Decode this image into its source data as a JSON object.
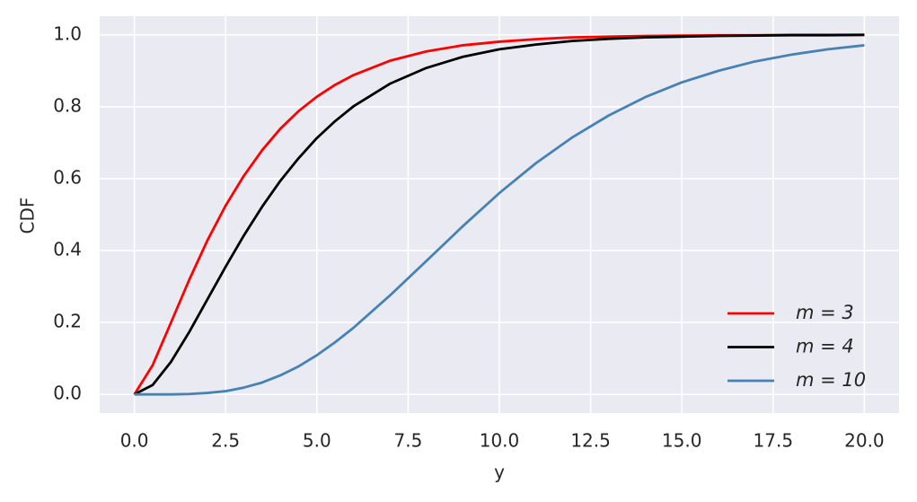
{
  "chart_data": {
    "type": "line",
    "xlabel": "y",
    "ylabel": "CDF",
    "x": [
      0,
      0.5,
      1,
      1.5,
      2,
      2.5,
      3,
      3.5,
      4,
      4.5,
      5,
      5.5,
      6,
      7,
      8,
      9,
      10,
      11,
      12,
      13,
      14,
      15,
      16,
      17,
      18,
      19,
      20
    ],
    "series": [
      {
        "name": "m = 3",
        "color": "#ff0000",
        "values": [
          0,
          0.081,
          0.199,
          0.318,
          0.428,
          0.525,
          0.608,
          0.679,
          0.739,
          0.788,
          0.828,
          0.861,
          0.888,
          0.928,
          0.954,
          0.971,
          0.981,
          0.988,
          0.993,
          0.995,
          0.997,
          0.998,
          0.999,
          0.999,
          1.0,
          1.0,
          1.0
        ]
      },
      {
        "name": "m = 4",
        "color": "#000000",
        "values": [
          0,
          0.026,
          0.09,
          0.173,
          0.264,
          0.355,
          0.442,
          0.522,
          0.594,
          0.657,
          0.713,
          0.76,
          0.801,
          0.864,
          0.908,
          0.939,
          0.96,
          0.973,
          0.983,
          0.989,
          0.993,
          0.995,
          0.997,
          0.998,
          0.999,
          0.999,
          1.0
        ]
      },
      {
        "name": "m = 10",
        "color": "#4682b4",
        "values": [
          0,
          0.0,
          0.0,
          0.001,
          0.004,
          0.009,
          0.019,
          0.033,
          0.053,
          0.078,
          0.109,
          0.145,
          0.185,
          0.275,
          0.371,
          0.468,
          0.56,
          0.643,
          0.715,
          0.776,
          0.827,
          0.868,
          0.9,
          0.926,
          0.945,
          0.96,
          0.971
        ]
      }
    ],
    "xlim": [
      -0.95,
      20.95
    ],
    "xticks": [
      {
        "value": 0,
        "label": "0.0"
      },
      2.5,
      {
        "value": 5,
        "label": "5.0"
      },
      7.5,
      {
        "value": 10,
        "label": "10.0"
      },
      12.5,
      {
        "value": 15,
        "label": "15.0"
      },
      17.5,
      {
        "value": 20,
        "label": "20.0"
      }
    ],
    "ylim": [
      -0.052,
      1.052
    ],
    "yticks": [
      {
        "value": 0,
        "label": "0.0"
      },
      0.2,
      0.4,
      0.6,
      0.8,
      {
        "value": 1,
        "label": "1.0"
      }
    ],
    "grid": true,
    "legend": "lower right"
  }
}
